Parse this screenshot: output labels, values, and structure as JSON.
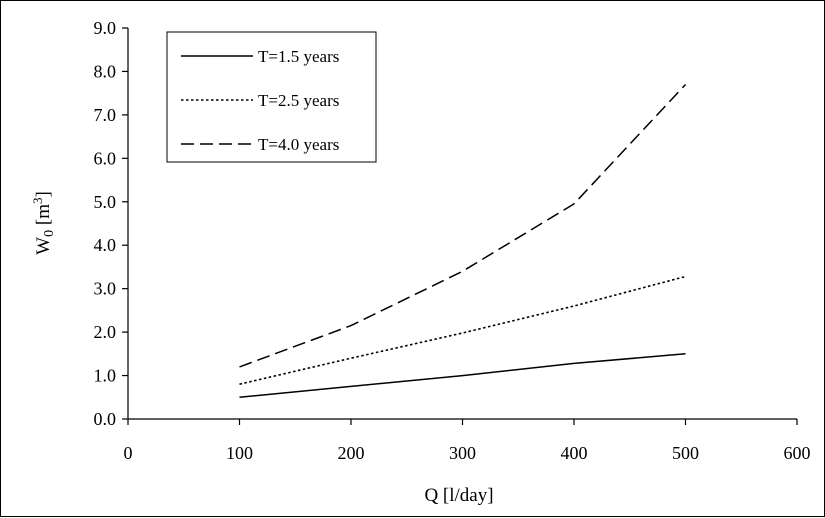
{
  "chart_data": {
    "type": "line",
    "xlabel": "Q [l/day]",
    "ylabel": "W0 [m3]",
    "ylabel_parts": {
      "main": "W",
      "sub": "0",
      "unit_open": " [m",
      "sup": "3",
      "unit_close": "]"
    },
    "xlim": [
      0,
      600
    ],
    "ylim": [
      0,
      9
    ],
    "x_ticks": [
      0,
      100,
      200,
      300,
      400,
      500,
      600
    ],
    "y_ticks": [
      "0.0",
      "1.0",
      "2.0",
      "3.0",
      "4.0",
      "5.0",
      "6.0",
      "7.0",
      "8.0",
      "9.0"
    ],
    "grid": false,
    "legend_position": "top-left",
    "x": [
      100,
      200,
      300,
      400,
      500
    ],
    "series": [
      {
        "name": "T=1.5 years",
        "style": "solid",
        "values": [
          0.5,
          0.75,
          1.0,
          1.28,
          1.5
        ]
      },
      {
        "name": "T=2.5 years",
        "style": "dotted",
        "values": [
          0.8,
          1.4,
          1.98,
          2.6,
          3.28
        ]
      },
      {
        "name": "T=4.0 years",
        "style": "dashed",
        "values": [
          1.2,
          2.15,
          3.4,
          4.95,
          7.7
        ]
      }
    ]
  }
}
